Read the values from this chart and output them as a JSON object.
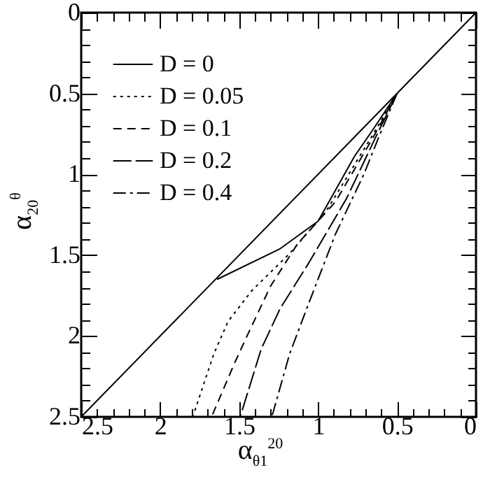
{
  "chart_data": {
    "type": "line",
    "xlabel": "α$_{θ1}$$^{20}$",
    "ylabel": "α$_{20}$$^{θ}$",
    "xlim": [
      2.5,
      0
    ],
    "ylim": [
      2.5,
      0
    ],
    "xticks": [
      {
        "value": 2.5,
        "label": "2.5"
      },
      {
        "value": 2.4,
        "label": null
      },
      {
        "value": 2.3,
        "label": null
      },
      {
        "value": 2.2,
        "label": null
      },
      {
        "value": 2.1,
        "label": null
      },
      2,
      {
        "value": 1.9,
        "label": null
      },
      {
        "value": 1.8,
        "label": null
      },
      {
        "value": 1.7,
        "label": null
      },
      {
        "value": 1.6,
        "label": null
      },
      1.5,
      {
        "value": 1.4,
        "label": null
      },
      {
        "value": 1.3,
        "label": null
      },
      {
        "value": 1.2,
        "label": null
      },
      {
        "value": 1.1,
        "label": null
      },
      1,
      {
        "value": 0.9,
        "label": null
      },
      {
        "value": 0.8,
        "label": null
      },
      {
        "value": 0.7,
        "label": null
      },
      {
        "value": 0.6,
        "label": null
      },
      0.5,
      {
        "value": 0.4,
        "label": null
      },
      {
        "value": 0.3,
        "label": null
      },
      {
        "value": 0.2,
        "label": null
      },
      {
        "value": 0.1,
        "label": null
      },
      0
    ],
    "yticks": [
      {
        "value": 2.5,
        "label": "2.5"
      },
      {
        "value": 2.4,
        "label": null
      },
      {
        "value": 2.3,
        "label": null
      },
      {
        "value": 2.2,
        "label": null
      },
      {
        "value": 2.1,
        "label": null
      },
      2,
      {
        "value": 1.9,
        "label": null
      },
      {
        "value": 1.8,
        "label": null
      },
      {
        "value": 1.7,
        "label": null
      },
      {
        "value": 1.6,
        "label": null
      },
      1.5,
      {
        "value": 1.4,
        "label": null
      },
      {
        "value": 1.3,
        "label": null
      },
      {
        "value": 1.2,
        "label": null
      },
      {
        "value": 1.1,
        "label": null
      },
      1,
      {
        "value": 0.9,
        "label": null
      },
      {
        "value": 0.8,
        "label": null
      },
      {
        "value": 0.7,
        "label": null
      },
      {
        "value": 0.6,
        "label": null
      },
      0.5,
      {
        "value": 0.4,
        "label": null
      },
      {
        "value": 0.3,
        "label": null
      },
      {
        "value": 0.2,
        "label": null
      },
      {
        "value": 0.1,
        "label": null
      },
      0
    ],
    "legend": "top left",
    "marker": "none",
    "grid": false,
    "series": [
      {
        "color": "#000000",
        "line_style": "solid",
        "x": [
          0,
          2.5
        ],
        "values": [
          0,
          2.5
        ]
      },
      {
        "name": "D = 0",
        "color": "#000000",
        "line_style": "solid",
        "x": [
          0.5,
          0.65,
          0.77,
          1.0,
          1.24,
          1.64
        ],
        "values": [
          0.5,
          0.72,
          0.89,
          1.29,
          1.46,
          1.65
        ]
      },
      {
        "name": "D = 0.05",
        "color": "#000000",
        "line_style": "dotted",
        "x": [
          0.5,
          0.65,
          0.95,
          1.18,
          1.42,
          1.57,
          1.66,
          1.79
        ],
        "values": [
          0.5,
          0.75,
          1.23,
          1.49,
          1.72,
          1.91,
          2.11,
          2.49
        ]
      },
      {
        "name": "D = 0.1",
        "color": "#000000",
        "line_style": "dashed",
        "x": [
          0.5,
          0.65,
          0.89,
          1.13,
          1.3,
          1.45,
          1.53,
          1.67
        ],
        "values": [
          0.5,
          0.77,
          1.17,
          1.43,
          1.69,
          2.0,
          2.17,
          2.49
        ]
      },
      {
        "name": "D = 0.2",
        "color": "#000000",
        "line_style": "dashed",
        "x": [
          0.5,
          0.64,
          0.82,
          1.06,
          1.24,
          1.36,
          1.49
        ],
        "values": [
          0.5,
          0.78,
          1.15,
          1.55,
          1.83,
          2.08,
          2.49
        ]
      },
      {
        "name": "D = 0.4",
        "color": "#000000",
        "line_style": "dashed",
        "x": [
          0.5,
          0.62,
          0.71,
          0.89,
          1.06,
          1.18,
          1.29
        ],
        "values": [
          0.5,
          0.78,
          1.0,
          1.37,
          1.8,
          2.11,
          2.49
        ]
      }
    ]
  }
}
